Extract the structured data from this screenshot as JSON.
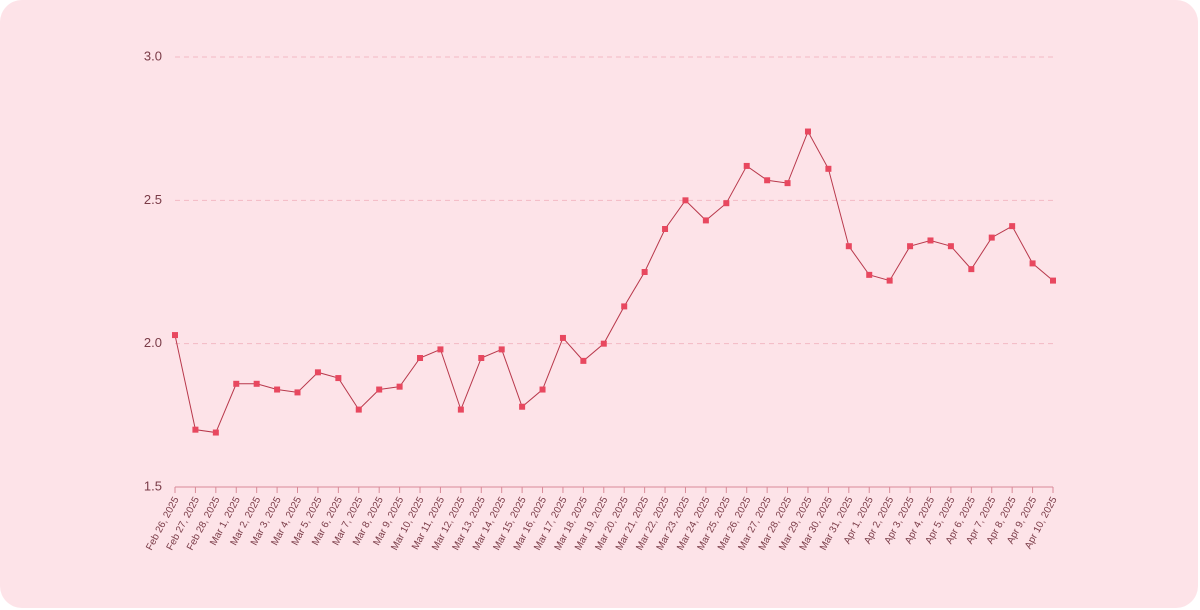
{
  "chart_data": {
    "type": "line",
    "categories": [
      "Feb 26, 2025",
      "Feb 27, 2025",
      "Feb 28, 2025",
      "Mar 1, 2025",
      "Mar 2, 2025",
      "Mar 3, 2025",
      "Mar 4, 2025",
      "Mar 5, 2025",
      "Mar 6, 2025",
      "Mar 7, 2025",
      "Mar 8, 2025",
      "Mar 9, 2025",
      "Mar 10, 2025",
      "Mar 11, 2025",
      "Mar 12, 2025",
      "Mar 13, 2025",
      "Mar 14, 2025",
      "Mar 15, 2025",
      "Mar 16, 2025",
      "Mar 17, 2025",
      "Mar 18, 2025",
      "Mar 19, 2025",
      "Mar 20, 2025",
      "Mar 21, 2025",
      "Mar 22, 2025",
      "Mar 23, 2025",
      "Mar 24, 2025",
      "Mar 25, 2025",
      "Mar 26, 2025",
      "Mar 27, 2025",
      "Mar 28, 2025",
      "Mar 29, 2025",
      "Mar 30, 2025",
      "Mar 31, 2025",
      "Apr 1, 2025",
      "Apr 2, 2025",
      "Apr 3, 2025",
      "Apr 4, 2025",
      "Apr 5, 2025",
      "Apr 6, 2025",
      "Apr 7, 2025",
      "Apr 8, 2025",
      "Apr 9, 2025",
      "Apr 10, 2025"
    ],
    "values": [
      2.03,
      1.7,
      1.69,
      1.86,
      1.86,
      1.84,
      1.83,
      1.9,
      1.88,
      1.77,
      1.84,
      1.85,
      1.95,
      1.98,
      1.77,
      1.95,
      1.98,
      1.78,
      1.84,
      2.02,
      1.94,
      2.0,
      2.13,
      2.25,
      2.4,
      2.5,
      2.43,
      2.49,
      2.62,
      2.57,
      2.56,
      2.74,
      2.61,
      2.34,
      2.24,
      2.22,
      2.34,
      2.36,
      2.34,
      2.26,
      2.37,
      2.41,
      2.28,
      2.22
    ],
    "color": "#e8485f",
    "line_color": "#b8384b",
    "ylim": [
      1.5,
      3.0
    ],
    "yticks": [
      1.5,
      {
        "value": 2.0,
        "label": "2.0"
      },
      2.5,
      {
        "value": 3.0,
        "label": "3.0"
      }
    ],
    "grid": true
  }
}
